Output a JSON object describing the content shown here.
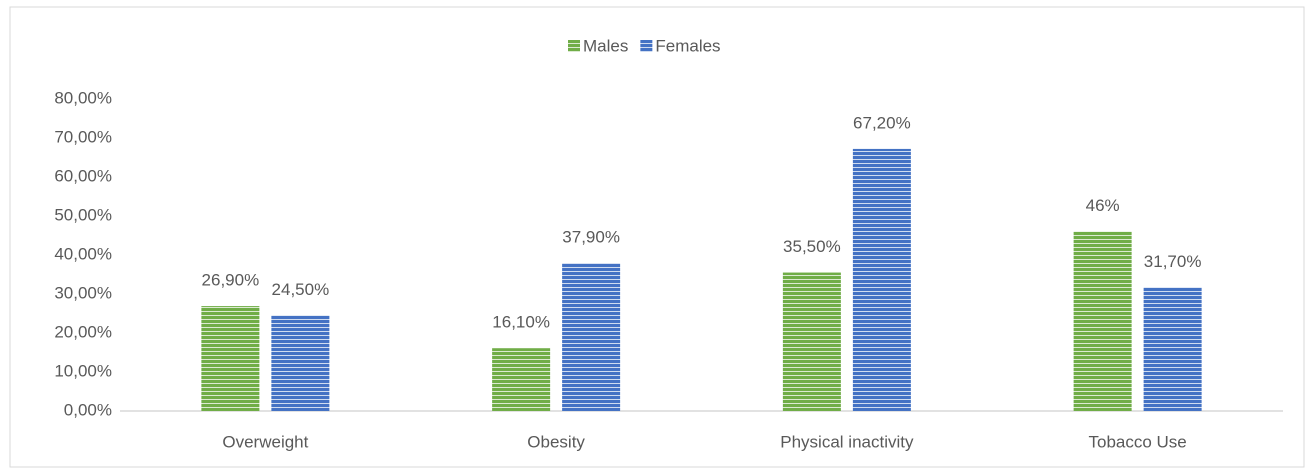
{
  "chart_data": {
    "type": "bar",
    "categories": [
      "Overweight",
      "Obesity",
      "Physical inactivity",
      "Tobacco Use"
    ],
    "series": [
      {
        "name": "Males",
        "color": "#70ad47",
        "values": [
          26.9,
          16.1,
          35.5,
          46
        ],
        "value_labels": [
          "26,90%",
          "16,10%",
          "35,50%",
          "46%"
        ]
      },
      {
        "name": "Females",
        "color": "#4472c4",
        "values": [
          24.5,
          37.9,
          67.2,
          31.7
        ],
        "value_labels": [
          "24,50%",
          "37,90%",
          "67,20%",
          "31,70%"
        ]
      }
    ],
    "ylim": [
      0,
      80
    ],
    "yticks": [
      {
        "value": 0,
        "label": "0,00%"
      },
      {
        "value": 10,
        "label": "10,00%"
      },
      {
        "value": 20,
        "label": "20,00%"
      },
      {
        "value": 30,
        "label": "30,00%"
      },
      {
        "value": 40,
        "label": "40,00%"
      },
      {
        "value": 50,
        "label": "50,00%"
      },
      {
        "value": 60,
        "label": "60,00%"
      },
      {
        "value": 70,
        "label": "70,00%"
      },
      {
        "value": 80,
        "label": "80,00%"
      }
    ],
    "legend": "top"
  }
}
